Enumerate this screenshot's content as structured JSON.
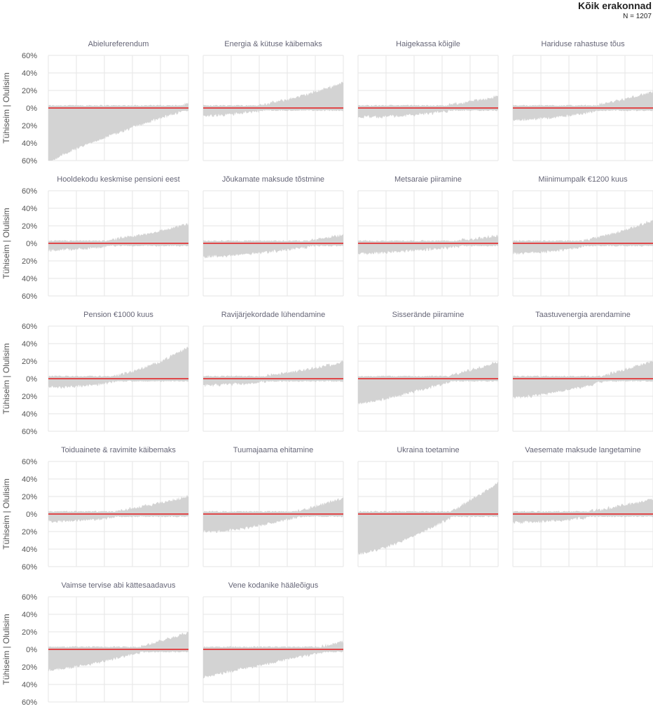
{
  "header": {
    "title": "Kõik erakonnad",
    "subtitle": "N = 1207"
  },
  "y_axis_label": "Tühiseim | Olulisim",
  "y_tick_labels": [
    "60%",
    "40%",
    "20%",
    "0%",
    "20%",
    "40%",
    "60%"
  ],
  "colors": {
    "area": "#d3d3d3",
    "zero_line": "#e31a1c",
    "grid": "#e6e6e6",
    "title": "#666677",
    "tick": "#555555"
  },
  "chart_data": [
    {
      "type": "area",
      "title": "Abielureferendum",
      "ylim": [
        -60,
        60
      ],
      "y_pos_end": 2,
      "y_neg_start": -60,
      "curve": 0.8,
      "grid": true
    },
    {
      "type": "area",
      "title": "Energia & kütuse käibemaks",
      "ylim": [
        -60,
        60
      ],
      "y_pos_end": 26,
      "y_neg_start": -5,
      "curve": 2.0,
      "grid": true
    },
    {
      "type": "area",
      "title": "Haigekassa kõigile",
      "ylim": [
        -60,
        60
      ],
      "y_pos_end": 10,
      "y_neg_start": -7,
      "curve": 2.0,
      "grid": true
    },
    {
      "type": "area",
      "title": "Hariduse rahastuse tõus",
      "ylim": [
        -60,
        60
      ],
      "y_pos_end": 15,
      "y_neg_start": -10,
      "curve": 1.8,
      "grid": true
    },
    {
      "type": "area",
      "title": "Hooldekodu keskmise pensioni eest",
      "ylim": [
        -60,
        60
      ],
      "y_pos_end": 19,
      "y_neg_start": -4,
      "curve": 2.0,
      "grid": true
    },
    {
      "type": "area",
      "title": "Jõukamate maksude tõstmine",
      "ylim": [
        -60,
        60
      ],
      "y_pos_end": 6,
      "y_neg_start": -12,
      "curve": 1.5,
      "grid": true
    },
    {
      "type": "area",
      "title": "Metsaraie piiramine",
      "ylim": [
        -60,
        60
      ],
      "y_pos_end": 5,
      "y_neg_start": -8,
      "curve": 1.5,
      "grid": true
    },
    {
      "type": "area",
      "title": "Miinimumpalk €1200 kuus",
      "ylim": [
        -60,
        60
      ],
      "y_pos_end": 23,
      "y_neg_start": -8,
      "curve": 2.0,
      "grid": true
    },
    {
      "type": "area",
      "title": "Pension €1000 kuus",
      "ylim": [
        -60,
        60
      ],
      "y_pos_end": 33,
      "y_neg_start": -6,
      "curve": 2.5,
      "grid": true
    },
    {
      "type": "area",
      "title": "Ravijärjekordade lühendamine",
      "ylim": [
        -60,
        60
      ],
      "y_pos_end": 16,
      "y_neg_start": -4,
      "curve": 2.0,
      "grid": true
    },
    {
      "type": "area",
      "title": "Sisserände piiramine",
      "ylim": [
        -60,
        60
      ],
      "y_pos_end": 16,
      "y_neg_start": -25,
      "curve": 1.2,
      "grid": true
    },
    {
      "type": "area",
      "title": "Taastuvenergia arendamine",
      "ylim": [
        -60,
        60
      ],
      "y_pos_end": 17,
      "y_neg_start": -18,
      "curve": 1.5,
      "grid": true
    },
    {
      "type": "area",
      "title": "Toiduainete & ravimite käibemaks",
      "ylim": [
        -60,
        60
      ],
      "y_pos_end": 17,
      "y_neg_start": -5,
      "curve": 2.0,
      "grid": true
    },
    {
      "type": "area",
      "title": "Tuumajaama ehitamine",
      "ylim": [
        -60,
        60
      ],
      "y_pos_end": 15,
      "y_neg_start": -17,
      "curve": 1.6,
      "grid": true
    },
    {
      "type": "area",
      "title": "Ukraina toetamine",
      "ylim": [
        -60,
        60
      ],
      "y_pos_end": 32,
      "y_neg_start": -42,
      "curve": 1.4,
      "grid": true
    },
    {
      "type": "area",
      "title": "Vaesemate maksude langetamine",
      "ylim": [
        -60,
        60
      ],
      "y_pos_end": 14,
      "y_neg_start": -6,
      "curve": 2.0,
      "grid": true
    },
    {
      "type": "area",
      "title": "Vaimse tervise abi kättesaadavus",
      "ylim": [
        -60,
        60
      ],
      "y_pos_end": 16,
      "y_neg_start": -20,
      "curve": 1.4,
      "grid": true
    },
    {
      "type": "area",
      "title": "Vene kodanike hääleõigus",
      "ylim": [
        -60,
        60
      ],
      "y_pos_end": 5,
      "y_neg_start": -28,
      "curve": 1.0,
      "grid": true
    }
  ]
}
